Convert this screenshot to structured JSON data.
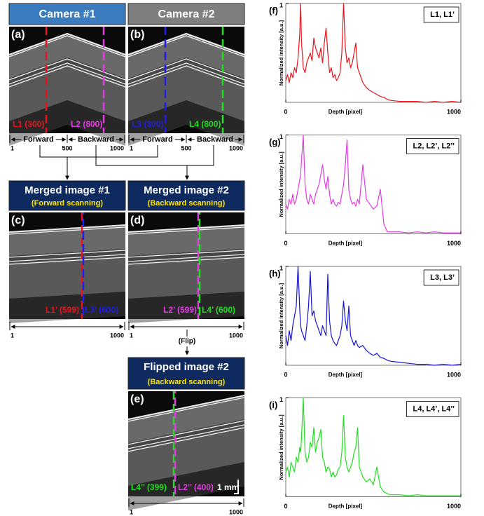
{
  "images": {
    "cameras": [
      {
        "title": "Camera #1",
        "panel": "(a)",
        "lines": [
          "L1 (300)",
          "L2 (800)"
        ],
        "ticks": [
          1,
          500,
          1000
        ],
        "directions": [
          "Forward",
          "Backward"
        ]
      },
      {
        "title": "Camera #2",
        "panel": "(b)",
        "lines": [
          "L3 (300)",
          "L4 (800)"
        ],
        "ticks": [
          1,
          500,
          1000
        ],
        "directions": [
          "Forward",
          "Backward"
        ]
      }
    ],
    "merged": [
      {
        "title": "Merged image #1",
        "subtitle": "(Forward scanning)",
        "panel": "(c)",
        "lines": [
          "L1’ (599)",
          "L3’ (600)"
        ],
        "ticks": [
          1,
          1000
        ]
      },
      {
        "title": "Merged image #2",
        "subtitle": "(Backward scanning)",
        "panel": "(d)",
        "lines": [
          "L2’ (599)",
          "L4’ (600)"
        ],
        "ticks": [
          1,
          1000
        ]
      }
    ],
    "flip_label": "(Flip)",
    "flipped": {
      "title": "Flipped  image #2",
      "subtitle": "(Backward scanning)",
      "panel": "(e)",
      "lines": [
        "L4’’ (399)",
        "L2’’ (400)"
      ],
      "scale_bar": "1 mm",
      "ticks": [
        1,
        1000
      ]
    }
  },
  "chart_data": [
    {
      "type": "line",
      "panel": "(f)",
      "xlabel": "Depth [pixel]",
      "ylabel": "Normalized intensity [a.u.]",
      "xlim": [
        0,
        1000
      ],
      "ylim": [
        0,
        1
      ],
      "xticks": [
        0,
        1000
      ],
      "yticks": [
        1
      ],
      "x": [
        0,
        10,
        20,
        30,
        40,
        50,
        60,
        70,
        80,
        85,
        90,
        100,
        110,
        120,
        130,
        140,
        150,
        160,
        170,
        180,
        190,
        200,
        210,
        220,
        230,
        240,
        250,
        260,
        270,
        280,
        290,
        300,
        310,
        320,
        330,
        340,
        350,
        360,
        370,
        380,
        390,
        400,
        410,
        420,
        440,
        460,
        480,
        500,
        520,
        540,
        560,
        580,
        600,
        650,
        700,
        750,
        800,
        850,
        900,
        950,
        1000
      ],
      "series": [
        {
          "name": "L1, L1’",
          "color": "#e8141c",
          "values": [
            0.22,
            0.28,
            0.2,
            0.3,
            0.25,
            0.35,
            0.3,
            0.45,
            0.7,
            1.0,
            0.6,
            0.35,
            0.3,
            0.4,
            0.45,
            0.5,
            0.42,
            0.65,
            0.55,
            0.5,
            0.45,
            0.55,
            0.4,
            0.6,
            0.75,
            0.5,
            0.3,
            0.35,
            0.25,
            0.28,
            0.22,
            0.25,
            0.3,
            0.5,
            1.0,
            0.55,
            0.4,
            0.45,
            0.35,
            0.4,
            0.5,
            0.6,
            0.35,
            0.3,
            0.2,
            0.15,
            0.12,
            0.1,
            0.08,
            0.06,
            0.05,
            0.03,
            0.02,
            0.01,
            0.01,
            0.01,
            0,
            0.01,
            0,
            0.01,
            0
          ]
        }
      ]
    },
    {
      "type": "line",
      "panel": "(g)",
      "xlabel": "Depth [pixel]",
      "ylabel": "Normalized intensity [a.u.]",
      "xlim": [
        0,
        1000
      ],
      "ylim": [
        0,
        1
      ],
      "xticks": [
        0,
        1000
      ],
      "yticks": [
        1
      ],
      "x": [
        0,
        10,
        20,
        30,
        40,
        50,
        60,
        70,
        80,
        85,
        90,
        100,
        110,
        120,
        130,
        140,
        150,
        160,
        170,
        180,
        190,
        200,
        210,
        220,
        230,
        240,
        250,
        260,
        270,
        280,
        290,
        300,
        310,
        320,
        330,
        340,
        350,
        360,
        370,
        380,
        390,
        400,
        410,
        420,
        440,
        460,
        480,
        500,
        520,
        540,
        560,
        580,
        600,
        650,
        700,
        750,
        800,
        850,
        900,
        950,
        1000
      ],
      "series": [
        {
          "name": "L2, L2’, L2’’",
          "color": "#e23ce2",
          "values": [
            0.3,
            0.25,
            0.35,
            0.3,
            0.4,
            0.3,
            0.35,
            0.45,
            0.55,
            0.6,
            0.75,
            1.0,
            0.5,
            0.35,
            0.3,
            0.4,
            0.35,
            0.3,
            0.4,
            0.45,
            0.5,
            0.6,
            0.7,
            0.55,
            0.45,
            0.58,
            0.4,
            0.3,
            0.35,
            0.3,
            0.28,
            0.32,
            0.3,
            0.4,
            0.5,
            0.7,
            0.95,
            0.45,
            0.35,
            0.3,
            0.32,
            0.28,
            0.35,
            0.3,
            0.7,
            0.35,
            0.3,
            0.25,
            0.28,
            0.45,
            0.1,
            0.02,
            0.02,
            0.02,
            0.01,
            0.02,
            0.01,
            0.02,
            0.01,
            0.01,
            0.01
          ]
        }
      ]
    },
    {
      "type": "line",
      "panel": "(h)",
      "xlabel": "Depth [pixel]",
      "ylabel": "Normalized intensity [a.u.]",
      "xlim": [
        0,
        1000
      ],
      "ylim": [
        0,
        1
      ],
      "xticks": [
        0,
        1000
      ],
      "yticks": [
        1
      ],
      "x": [
        0,
        10,
        20,
        30,
        40,
        50,
        60,
        70,
        80,
        85,
        90,
        100,
        110,
        120,
        130,
        140,
        150,
        160,
        170,
        180,
        190,
        200,
        210,
        220,
        230,
        240,
        250,
        260,
        270,
        280,
        290,
        300,
        310,
        320,
        330,
        340,
        350,
        360,
        370,
        380,
        390,
        400,
        410,
        420,
        440,
        460,
        480,
        500,
        520,
        540,
        560,
        580,
        600,
        650,
        700,
        750,
        800,
        850,
        900,
        950,
        1000
      ],
      "series": [
        {
          "name": "L3, L3’",
          "color": "#1414d2",
          "values": [
            0.3,
            0.2,
            0.35,
            0.25,
            0.4,
            0.5,
            0.6,
            1.0,
            0.55,
            0.4,
            0.35,
            0.3,
            0.25,
            0.4,
            0.6,
            0.95,
            0.5,
            0.55,
            0.45,
            0.4,
            0.35,
            0.3,
            0.4,
            0.35,
            0.3,
            0.92,
            0.45,
            0.3,
            0.25,
            0.22,
            0.2,
            0.25,
            0.3,
            0.4,
            0.65,
            0.45,
            0.35,
            0.6,
            0.3,
            0.25,
            0.2,
            0.25,
            0.2,
            0.18,
            0.2,
            0.15,
            0.12,
            0.1,
            0.12,
            0.08,
            0.07,
            0.05,
            0.04,
            0.03,
            0.02,
            0.01,
            0.01,
            0,
            0.01,
            0,
            0.01
          ]
        }
      ]
    },
    {
      "type": "line",
      "panel": "(i)",
      "xlabel": "Depth [pixel]",
      "ylabel": "Normalized intensity [a.u.]",
      "xlim": [
        0,
        1000
      ],
      "ylim": [
        0,
        1
      ],
      "xticks": [
        0,
        1000
      ],
      "yticks": [
        1
      ],
      "x": [
        0,
        10,
        20,
        30,
        40,
        50,
        60,
        70,
        80,
        85,
        90,
        100,
        110,
        120,
        130,
        140,
        150,
        160,
        170,
        180,
        190,
        200,
        210,
        220,
        230,
        240,
        250,
        260,
        270,
        280,
        290,
        300,
        310,
        320,
        330,
        340,
        350,
        360,
        370,
        380,
        390,
        400,
        410,
        420,
        440,
        460,
        480,
        500,
        520,
        540,
        560,
        580,
        600,
        650,
        700,
        750,
        800,
        850,
        900,
        950,
        1000
      ],
      "series": [
        {
          "name": "L4, L4’, L4’’",
          "color": "#1ee01e",
          "values": [
            0.25,
            0.3,
            0.2,
            0.35,
            0.3,
            0.25,
            0.4,
            0.35,
            0.5,
            0.45,
            0.6,
            1.0,
            0.45,
            0.35,
            0.4,
            0.55,
            0.5,
            0.7,
            0.45,
            0.55,
            0.6,
            0.68,
            0.4,
            0.35,
            0.25,
            0.3,
            0.28,
            0.2,
            0.25,
            0.2,
            0.22,
            0.28,
            0.3,
            0.45,
            0.82,
            0.4,
            0.3,
            0.25,
            0.3,
            0.35,
            0.45,
            0.5,
            0.7,
            0.3,
            0.2,
            0.15,
            0.18,
            0.12,
            0.3,
            0.1,
            0.05,
            0.03,
            0.02,
            0.02,
            0.01,
            0.02,
            0.01,
            0.01,
            0.01,
            0.01,
            0.01
          ]
        }
      ]
    }
  ]
}
